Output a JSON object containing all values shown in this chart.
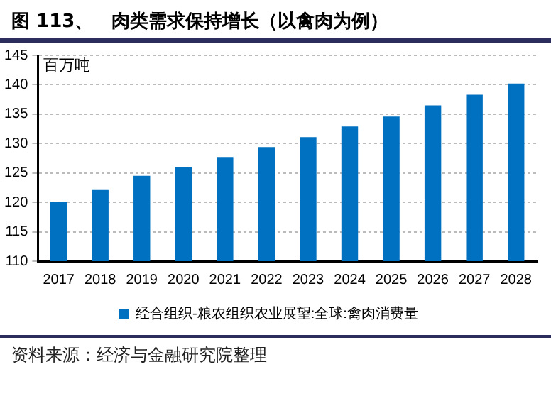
{
  "chart_data": {
    "type": "bar",
    "title": "图 113、　肉类需求保持增长（以禽肉为例）",
    "ylabel": "百万吨",
    "categories": [
      "2017",
      "2018",
      "2019",
      "2020",
      "2021",
      "2022",
      "2023",
      "2024",
      "2025",
      "2026",
      "2027",
      "2028"
    ],
    "series": [
      {
        "name": "经合组织-粮农组织农业展望:全球:禽肉消费量",
        "color": "#0070c0",
        "values": [
          120.1,
          122.1,
          124.5,
          126.0,
          127.7,
          129.4,
          131.1,
          132.9,
          134.6,
          136.5,
          138.3,
          140.2
        ]
      }
    ],
    "ylim": [
      110,
      145
    ],
    "yticks": [
      110,
      115,
      120,
      125,
      130,
      135,
      140,
      145
    ],
    "grid": "y",
    "legend": "bottom",
    "annotations": [
      "资料来源：经济与金融研究院整理"
    ]
  }
}
